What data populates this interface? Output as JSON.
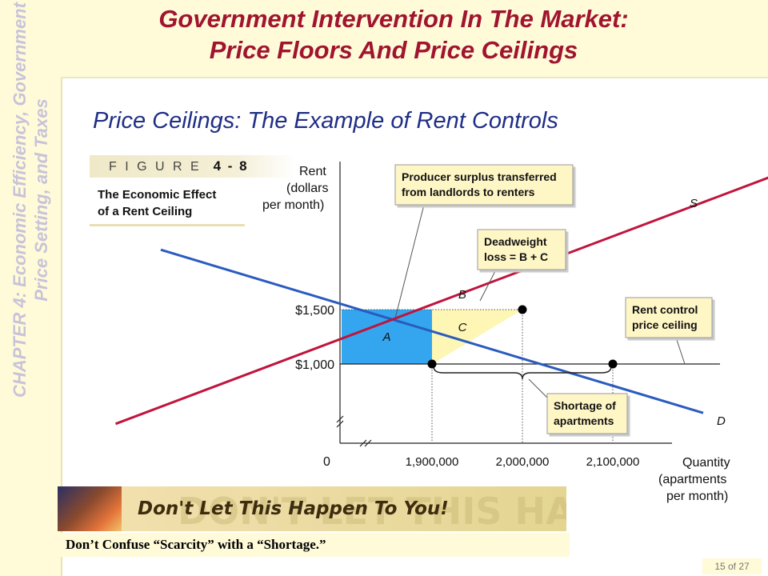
{
  "slide": {
    "chapter_line1": "CHAPTER 4:  Economic Efficiency, Government",
    "chapter_line2": "Price Setting, and Taxes",
    "title_line1": "Government Intervention In The Market:",
    "title_line2": "Price Floors And Price Ceilings",
    "subtitle": "Price Ceilings: The Example of Rent Controls",
    "figure_word": "F I G U R E",
    "figure_number": "4 - 8",
    "figure_caption_line1": "The Economic Effect",
    "figure_caption_line2": "of a Rent Ceiling",
    "banner_text": "Don't Let This Happen To You!",
    "banner_bg_text": "DON'T LET THIS HAPPEN TO YOU!",
    "note": "Don’t Confuse “Scarcity” with a “Shortage.”",
    "page_number": "15 of 27"
  },
  "colors": {
    "demand": "#2a5bbf",
    "supply": "#c0143c",
    "area_a": "#33a6ef",
    "areas_bc": "#fdf6b4",
    "callout_fill": "#fff6c6",
    "title": "#a0142f",
    "subtitle": "#1f2e86"
  },
  "chart_data": {
    "type": "line",
    "title": "",
    "ylabel_lines": [
      "Rent",
      "(dollars",
      "per month)"
    ],
    "xlabel_lines": [
      "Quantity",
      "(apartments",
      "per month)"
    ],
    "origin_label": "0",
    "x_ticks": [
      {
        "value": 1900000,
        "label": "1,900,000"
      },
      {
        "value": 2000000,
        "label": "2,000,000"
      },
      {
        "value": 2100000,
        "label": "2,100,000"
      }
    ],
    "y_ticks": [
      {
        "value": 1000,
        "label": "$1,000"
      },
      {
        "value": 1500,
        "label": "$1,500"
      }
    ],
    "series": [
      {
        "name": "D",
        "points": [
          [
            1600000,
            2050
          ],
          [
            2200000,
            550
          ]
        ]
      },
      {
        "name": "S",
        "points": [
          [
            1550000,
            450
          ],
          [
            2300000,
            2800
          ]
        ]
      }
    ],
    "equilibrium": {
      "quantity": 2000000,
      "rent": 1500
    },
    "price_ceiling": {
      "rent": 1000
    },
    "points": [
      {
        "quantity": 1900000,
        "rent": 1000
      },
      {
        "quantity": 2000000,
        "rent": 1500
      },
      {
        "quantity": 2100000,
        "rent": 1000
      }
    ],
    "areas": [
      {
        "label": "A",
        "x": [
          1800000,
          1900000
        ],
        "y": [
          1000,
          1500
        ]
      },
      {
        "label": "B"
      },
      {
        "label": "C"
      }
    ],
    "callouts": [
      {
        "lines": [
          "Producer surplus transferred",
          "from landlords to renters"
        ],
        "target": "A"
      },
      {
        "lines": [
          "Deadweight",
          "loss = B + C"
        ],
        "target": "B"
      },
      {
        "lines": [
          "Rent control",
          "price ceiling"
        ],
        "target": "ceiling"
      },
      {
        "lines": [
          "Shortage of",
          "apartments"
        ],
        "target": "shortage"
      }
    ]
  }
}
